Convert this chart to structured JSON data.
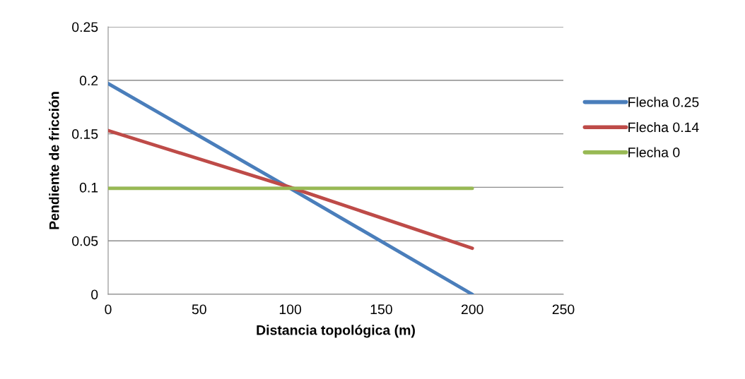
{
  "chart_data": {
    "type": "line",
    "xlabel": "Distancia topológica (m)",
    "ylabel": "Pendiente de fricción",
    "x": [
      0,
      100,
      200
    ],
    "series": [
      {
        "name": "Flecha 0.25",
        "color": "#4a7ebb",
        "values": [
          0.197,
          0.099,
          0.0
        ]
      },
      {
        "name": "Flecha 0.14",
        "color": "#be4b48",
        "values": [
          0.153,
          0.1,
          0.043
        ]
      },
      {
        "name": "Flecha 0",
        "color": "#98b954",
        "values": [
          0.099,
          0.099,
          0.099
        ]
      }
    ],
    "xlim": [
      0,
      250
    ],
    "xticks": [
      0,
      50,
      100,
      150,
      200,
      250
    ],
    "ylim": [
      0,
      0.25
    ],
    "yticks": [
      0,
      0.05,
      0.1,
      0.15,
      0.2,
      0.25
    ],
    "grid": "y",
    "legend": "right",
    "marker": "none",
    "line_style": "solid"
  }
}
